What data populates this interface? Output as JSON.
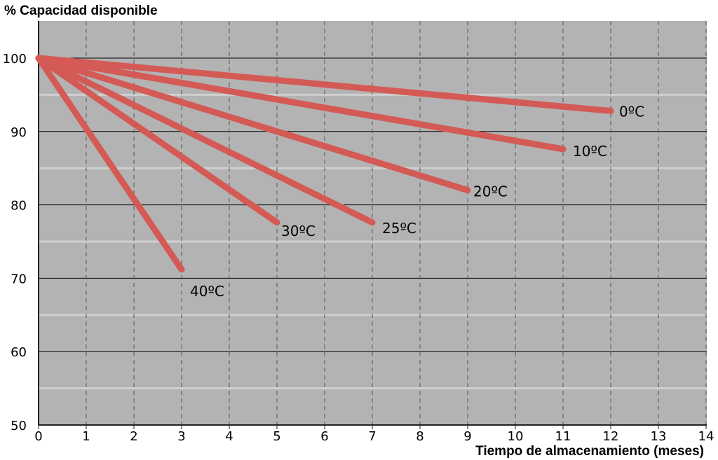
{
  "chart_data": {
    "type": "line",
    "title": "",
    "ylabel": "% Capacidad disponible",
    "xlabel": "Tiempo de almacenamiento (meses)",
    "xlim": [
      0,
      14
    ],
    "ylim": [
      50,
      100
    ],
    "x_ticks": [
      0,
      1,
      2,
      3,
      4,
      5,
      6,
      7,
      8,
      9,
      10,
      11,
      12,
      13,
      14
    ],
    "y_ticks": [
      50,
      60,
      70,
      80,
      90,
      100
    ],
    "grid": true,
    "colors": {
      "plot_background": "#b3b3b3",
      "line": "#d45a55"
    },
    "series": [
      {
        "name": "0ºC",
        "x": [
          0,
          12
        ],
        "y": [
          100,
          92.8
        ]
      },
      {
        "name": "10ºC",
        "x": [
          0,
          11
        ],
        "y": [
          100,
          87.6
        ]
      },
      {
        "name": "20ºC",
        "x": [
          0,
          9
        ],
        "y": [
          100,
          82.0
        ]
      },
      {
        "name": "25ºC",
        "x": [
          0,
          7
        ],
        "y": [
          100,
          77.6
        ]
      },
      {
        "name": "30ºC",
        "x": [
          0,
          5
        ],
        "y": [
          100,
          77.6
        ]
      },
      {
        "name": "40ºC",
        "x": [
          0,
          3
        ],
        "y": [
          100,
          71.2
        ]
      }
    ]
  }
}
